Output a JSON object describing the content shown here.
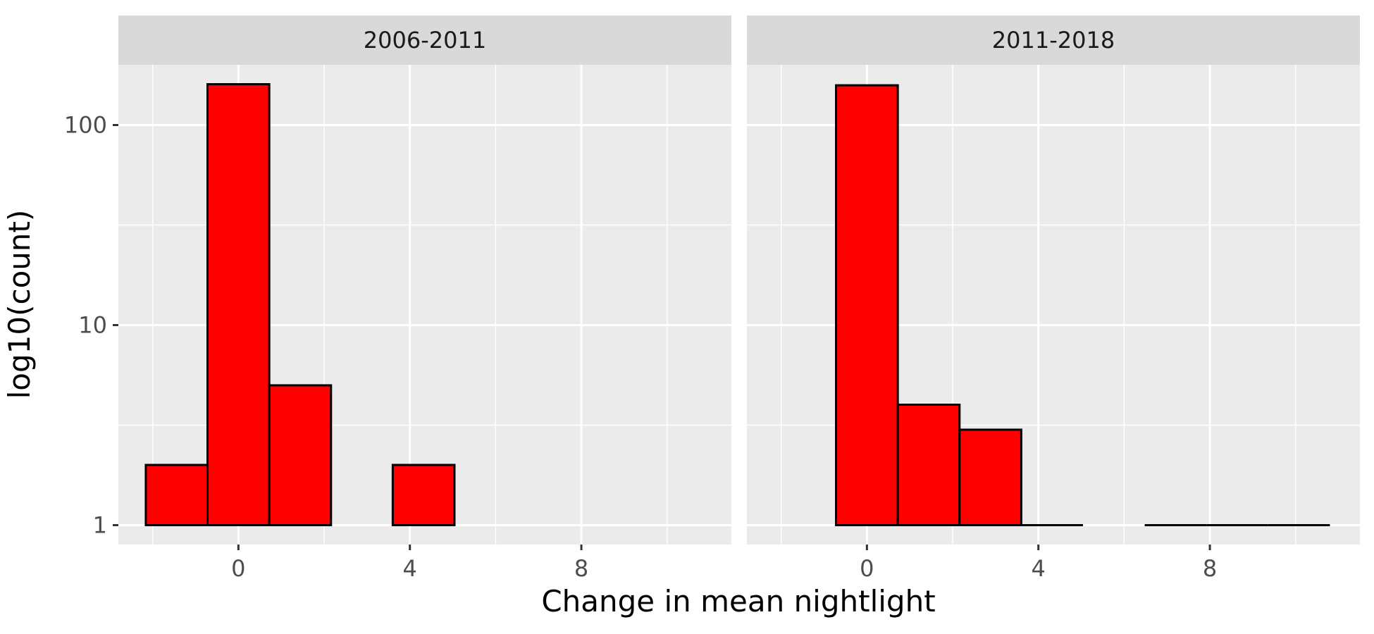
{
  "chart_data": {
    "type": "bar",
    "subtype": "histogram",
    "xlabel": "Change in mean nightlight",
    "ylabel": "log10(count)",
    "y_scale": "log10",
    "ylim": [
      0.8,
      200
    ],
    "y_ticks": [
      1,
      10,
      100
    ],
    "y_tick_labels": [
      "1",
      "10",
      "100"
    ],
    "xlim": [
      -2.8,
      11.5
    ],
    "x_ticks": [
      0,
      4,
      8
    ],
    "x_tick_labels": [
      "0",
      "4",
      "8"
    ],
    "x_minor_ticks": [
      -2,
      2,
      6,
      10
    ],
    "bin_width": 1.44,
    "grid": true,
    "bar_fill": "#FF0000",
    "bar_outline": "#000000",
    "panel_background": "#EBEBEB",
    "strip_background": "#D9D9D9",
    "panels": [
      {
        "label": "2006-2011",
        "bins": [
          {
            "x0": -2.16,
            "x1": -0.72,
            "count": 2
          },
          {
            "x0": -0.72,
            "x1": 0.72,
            "count": 160
          },
          {
            "x0": 0.72,
            "x1": 2.16,
            "count": 5
          },
          {
            "x0": 2.16,
            "x1": 3.6,
            "count": 0
          },
          {
            "x0": 3.6,
            "x1": 5.04,
            "count": 2
          }
        ]
      },
      {
        "label": "2011-2018",
        "bins": [
          {
            "x0": -0.72,
            "x1": 0.72,
            "count": 158
          },
          {
            "x0": 0.72,
            "x1": 2.16,
            "count": 4
          },
          {
            "x0": 2.16,
            "x1": 3.6,
            "count": 3
          },
          {
            "x0": 3.6,
            "x1": 5.04,
            "count": 1
          },
          {
            "x0": 5.04,
            "x1": 6.48,
            "count": 0
          },
          {
            "x0": 6.48,
            "x1": 7.92,
            "count": 1
          },
          {
            "x0": 7.92,
            "x1": 9.36,
            "count": 1
          },
          {
            "x0": 9.36,
            "x1": 10.8,
            "count": 1
          }
        ]
      }
    ]
  }
}
